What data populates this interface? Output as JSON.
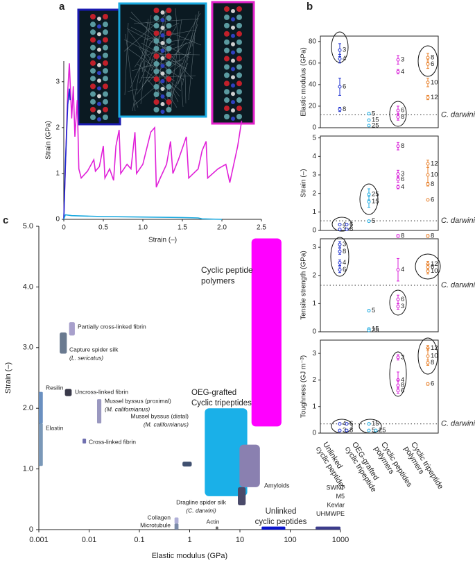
{
  "chart_data": [
    {
      "type": "line",
      "label": "a",
      "xlabel": "Strain (–)",
      "ylabel": "Strain (GPa)",
      "xlim": [
        0,
        2.5
      ],
      "ylim": [
        0,
        3.45
      ],
      "xticks": [
        0,
        0.5,
        {
          "value": 1,
          "label": "1.0"
        },
        1.5,
        {
          "value": 2,
          "label": "2.0"
        },
        2.5
      ],
      "yticks": [
        0,
        1,
        2,
        3
      ],
      "series": [
        {
          "color": "#e020d8",
          "x": [
            0,
            0.05,
            0.07,
            0.1,
            0.12,
            0.14,
            0.17,
            0.19,
            0.22,
            0.3,
            0.38,
            0.4,
            0.45,
            0.5,
            0.52,
            0.58,
            0.63,
            0.66,
            0.7,
            0.72,
            0.8,
            0.85,
            0.9,
            0.92,
            1.0,
            1.1,
            1.15,
            1.17,
            1.22,
            1.3,
            1.35,
            1.38,
            1.45,
            1.55,
            1.58,
            1.7,
            1.75,
            1.8,
            1.82,
            1.95,
            2.05,
            2.1,
            2.2,
            2.25
          ],
          "values": [
            0,
            2.8,
            3.4,
            2.2,
            2.9,
            1.8,
            2.6,
            1.1,
            0.9,
            1.05,
            1.3,
            1.05,
            1.15,
            1.6,
            0.9,
            1.1,
            0.85,
            1.6,
            1.95,
            1.0,
            1.2,
            1.1,
            1.9,
            1.0,
            1.2,
            1.9,
            2.0,
            0.7,
            0.9,
            1.2,
            1.7,
            1.0,
            1.3,
            1.8,
            0.9,
            1.1,
            1.5,
            1.7,
            0.9,
            1.1,
            1.2,
            0.8,
            1.6,
            2.15
          ]
        },
        {
          "color": "#1a2ad0",
          "x": [
            0,
            0.02,
            0.05,
            0.07,
            0.08
          ],
          "values": [
            0,
            1.2,
            2.5,
            2.85,
            2.6
          ]
        },
        {
          "color": "#19a9e0",
          "x": [
            0,
            0.02,
            0.1,
            0.5,
            1.0,
            1.5,
            1.7,
            1.75,
            2.0
          ],
          "values": [
            0,
            0.1,
            0.08,
            0.06,
            0.05,
            0.04,
            0.03,
            0.01,
            0
          ]
        }
      ]
    },
    {
      "type": "scatter-errorbar",
      "label": "b",
      "threshold_label": "C. darwini",
      "categories": [
        [
          "Unlinked",
          "cyclic peptides"
        ],
        [
          "OEG-grafted",
          "cyclic tripeptide"
        ],
        [
          "Cyclic peptides",
          "polymers"
        ],
        [
          "Cyclic tripeptide",
          "polymers"
        ]
      ],
      "colors": [
        "#1c2fd0",
        "#19a9e0",
        "#d81fd8",
        "#e8822e"
      ],
      "subplots": [
        {
          "ylabel": "Elastic modulus (GPa)",
          "ylim": [
            0,
            85
          ],
          "yticks": [
            0,
            20,
            40,
            60,
            80
          ],
          "threshold": 12,
          "series": [
            {
              "values": [
                72,
                64,
                38,
                17
              ],
              "errors": [
                6,
                4,
                8,
                2
              ],
              "labels": [
                3,
                4,
                6,
                8
              ]
            },
            {
              "values": [
                13,
                7,
                2
              ],
              "errors": [
                1,
                0.5,
                0.3
              ],
              "labels": [
                5,
                15,
                25
              ]
            },
            {
              "values": [
                63,
                52,
                16,
                10
              ],
              "errors": [
                4,
                2,
                4,
                3
              ],
              "labels": [
                3,
                4,
                6,
                8
              ]
            },
            {
              "values": [
                65,
                59,
                42,
                28
              ],
              "errors": [
                4,
                4,
                4,
                2
              ],
              "labels": [
                8,
                6,
                10,
                12
              ]
            }
          ]
        },
        {
          "ylabel": "Strain (–)",
          "ylim": [
            0,
            5.1
          ],
          "yticks": [
            0,
            1,
            2,
            3,
            4,
            5
          ],
          "threshold": 0.52,
          "series": [
            {
              "values": [
                0.32,
                0.32,
                0.06,
                0.06
              ],
              "errors": [
                0.03,
                0.03,
                0.02,
                0.02
              ],
              "labels": [
                4,
                6,
                3,
                8
              ]
            },
            {
              "values": [
                1.95,
                1.55,
                0.5
              ],
              "errors": [
                0.3,
                0.3,
                0.05
              ],
              "labels": [
                25,
                15,
                5
              ]
            },
            {
              "values": [
                4.55,
                3.05,
                2.75,
                2.35
              ],
              "errors": [
                0.2,
                0.2,
                0.15,
                0.1
              ],
              "labels": [
                8,
                3,
                6,
                4
              ]
            },
            {
              "values": [
                3.6,
                3.0,
                2.5,
                1.65
              ],
              "errors": [
                0.2,
                0.4,
                0.1,
                0.05
              ],
              "labels": [
                12,
                10,
                8,
                6
              ]
            }
          ]
        },
        {
          "ylabel": "Tensile strength (GPa)",
          "ylim": [
            0,
            3.3
          ],
          "yticks": [
            0,
            1,
            2,
            3
          ],
          "threshold": 1.65,
          "series": [
            {
              "values": [
                3.1,
                2.85,
                2.45,
                2.2
              ],
              "errors": [
                0.1,
                0.1,
                0.1,
                0.1
              ],
              "labels": [
                3,
                8,
                4,
                6
              ]
            },
            {
              "values": [
                0.75,
                0.1,
                0.05
              ],
              "errors": [
                0.03,
                0.02,
                0.02
              ],
              "labels": [
                5,
                15,
                25
              ]
            },
            {
              "values": [
                3.4,
                2.2,
                1.15,
                0.9
              ],
              "errors": [
                0.05,
                0.4,
                0.15,
                0.1
              ],
              "labels": [
                8,
                4,
                6,
                3
              ]
            },
            {
              "values": [
                3.4,
                2.4,
                2.3,
                2.15
              ],
              "errors": [
                0.05,
                0.1,
                0.1,
                0.1
              ],
              "labels": [
                8,
                12,
                6,
                10
              ]
            }
          ]
        },
        {
          "ylabel": "Toughness (GJ m⁻³)",
          "ylim": [
            0,
            3.5
          ],
          "yticks": [
            0,
            1,
            2,
            3
          ],
          "threshold": 0.35,
          "series": [
            {
              "values": [
                0.35,
                0.35,
                0.1,
                0.1
              ],
              "errors": [
                0.02,
                0.02,
                0.02,
                0.02
              ],
              "labels": [
                4,
                6,
                3,
                8
              ]
            },
            {
              "values": [
                0.35,
                0.1,
                0.1
              ],
              "errors": [
                0.02,
                0.02,
                0.02
              ],
              "labels": [
                15,
                5,
                25
              ]
            },
            {
              "values": [
                2.85,
                2.0,
                1.8,
                1.6
              ],
              "errors": [
                0.1,
                0.3,
                0.2,
                0.1
              ],
              "labels": [
                3,
                4,
                8,
                6
              ]
            },
            {
              "values": [
                3.2,
                2.9,
                2.65,
                1.85
              ],
              "errors": [
                0.1,
                0.3,
                0.1,
                0.05
              ],
              "labels": [
                12,
                10,
                8,
                6
              ]
            }
          ]
        }
      ]
    },
    {
      "type": "range",
      "label": "c",
      "xlabel": "Elastic modulus (GPa)",
      "ylabel": "Strain (–)",
      "xscale": "log",
      "xlim": [
        0.001,
        1000
      ],
      "ylim": [
        0,
        5.0
      ],
      "xticks": [
        0.001,
        0.01,
        0.1,
        1,
        10,
        100,
        1000
      ],
      "yticks": [
        0,
        {
          "value": 1,
          "label": "1.0"
        },
        {
          "value": 2,
          "label": "2.0"
        },
        {
          "value": 3,
          "label": "3.0"
        },
        {
          "value": 4,
          "label": "4.0"
        },
        {
          "value": 5,
          "label": "5.0"
        }
      ],
      "items": [
        {
          "labels": [
            "Cyclic peptide",
            "polymers"
          ],
          "color": "#ff00ff",
          "x": [
            17,
            67
          ],
          "y": [
            1.7,
            4.8
          ]
        },
        {
          "labels": [
            "OEG-grafted",
            "Cyclic tripeptides"
          ],
          "color": "#1ab0e8",
          "x": [
            2,
            14
          ],
          "y": [
            0.55,
            2.0
          ]
        },
        {
          "labels": [
            "Amyloids"
          ],
          "color": "#8a80b0",
          "x": [
            9.8,
            25
          ],
          "y": [
            0.7,
            1.4
          ]
        },
        {
          "labels": [
            "Dragline spider silk",
            "(C. darwini)"
          ],
          "color": "#4a4a6a",
          "x": [
            9.1,
            13
          ],
          "y": [
            0.4,
            0.7
          ]
        },
        {
          "labels": [
            "Unlinked",
            "cyclic peptides"
          ],
          "color": "#0a14cc",
          "x": [
            27,
            80
          ],
          "y": [
            0,
            0.05
          ]
        },
        {
          "labels": [
            "SWNT",
            "M5",
            "Kevlar",
            "UHMWPE"
          ],
          "color": "#3c3c8c",
          "x": [
            320,
            1000
          ],
          "y": [
            0,
            0.05
          ]
        },
        {
          "labels": [
            "Actin"
          ],
          "color": "#666666",
          "x": [
            3.3,
            3.7
          ],
          "y": [
            0,
            0.05
          ]
        },
        {
          "labels": [
            "Collagen"
          ],
          "color": "#b0b0d8",
          "x": [
            0.5,
            0.6
          ],
          "y": [
            0.1,
            0.2
          ]
        },
        {
          "labels": [
            "Microtubule"
          ],
          "color": "#7a8aa8",
          "x": [
            0.5,
            0.6
          ],
          "y": [
            0,
            0.1
          ]
        },
        {
          "labels": [
            "Cross-linked fibrin"
          ],
          "color": "#7070b0",
          "x": [
            0.0074,
            0.0087
          ],
          "y": [
            1.42,
            1.5
          ]
        },
        {
          "labels": [
            "Mussel byssus (distal)",
            "(M. californianus)"
          ],
          "color": "#405070",
          "x": [
            0.72,
            1.1
          ],
          "y": [
            1.04,
            1.12
          ]
        },
        {
          "labels": [
            "Mussel byssus (proximal)",
            "(M. californianus)"
          ],
          "color": "#9a98c0",
          "x": [
            0.0144,
            0.0175
          ],
          "y": [
            1.75,
            2.15
          ]
        },
        {
          "labels": [
            "Uncross-linked fibrin"
          ],
          "color": "#3a3a4a",
          "x": [
            0.0033,
            0.0045
          ],
          "y": [
            2.2,
            2.32
          ]
        },
        {
          "labels": [
            "Capture spider silk",
            "(L. sericatus)"
          ],
          "color": "#6a7a90",
          "x": [
            0.0026,
            0.0036
          ],
          "y": [
            2.9,
            3.25
          ]
        },
        {
          "labels": [
            "Partially cross-linked fibrin"
          ],
          "color": "#a8a0cc",
          "x": [
            0.004,
            0.0052
          ],
          "y": [
            3.2,
            3.42
          ]
        },
        {
          "labels": [
            "Resilin"
          ],
          "color": "#6a90c0",
          "x": [
            0.001,
            0.0012
          ],
          "y": [
            1.75,
            2.27
          ]
        },
        {
          "labels": [
            "Elastin"
          ],
          "color": "#7a98b8",
          "x": [
            0.001,
            0.0012
          ],
          "y": [
            1.05,
            1.75
          ]
        }
      ]
    }
  ]
}
